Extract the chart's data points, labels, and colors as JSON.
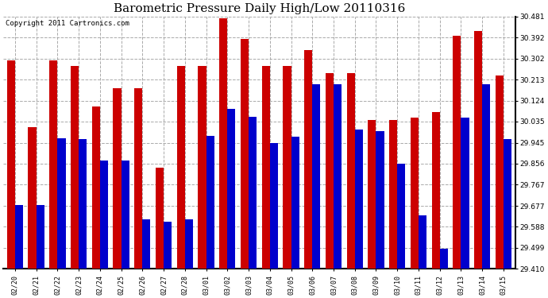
{
  "title": "Barometric Pressure Daily High/Low 20110316",
  "copyright": "Copyright 2011 Cartronics.com",
  "categories": [
    "02/20",
    "02/21",
    "02/22",
    "02/23",
    "02/24",
    "02/25",
    "02/26",
    "02/27",
    "02/28",
    "03/01",
    "03/02",
    "03/03",
    "03/04",
    "03/05",
    "03/06",
    "03/07",
    "03/08",
    "03/09",
    "03/10",
    "03/11",
    "03/12",
    "03/13",
    "03/14",
    "03/15"
  ],
  "highs": [
    30.295,
    30.01,
    30.295,
    30.27,
    30.1,
    30.175,
    30.175,
    29.84,
    30.27,
    30.27,
    30.472,
    30.385,
    30.27,
    30.27,
    30.34,
    30.24,
    30.24,
    30.04,
    30.04,
    30.05,
    30.075,
    30.4,
    30.42,
    30.23
  ],
  "lows": [
    29.68,
    29.68,
    29.965,
    29.96,
    29.87,
    29.87,
    29.62,
    29.61,
    29.62,
    29.975,
    30.09,
    30.055,
    29.945,
    29.97,
    30.195,
    30.195,
    30.0,
    29.995,
    29.855,
    29.635,
    29.495,
    30.05,
    30.195,
    29.96
  ],
  "high_color": "#cc0000",
  "low_color": "#0000cc",
  "background_color": "#ffffff",
  "grid_color": "#aaaaaa",
  "ymin": 29.41,
  "ymax": 30.481,
  "yticks": [
    29.41,
    29.499,
    29.588,
    29.677,
    29.767,
    29.856,
    29.945,
    30.035,
    30.124,
    30.213,
    30.302,
    30.392,
    30.481
  ],
  "title_fontsize": 11,
  "copyright_fontsize": 6.5,
  "bar_width": 0.38
}
